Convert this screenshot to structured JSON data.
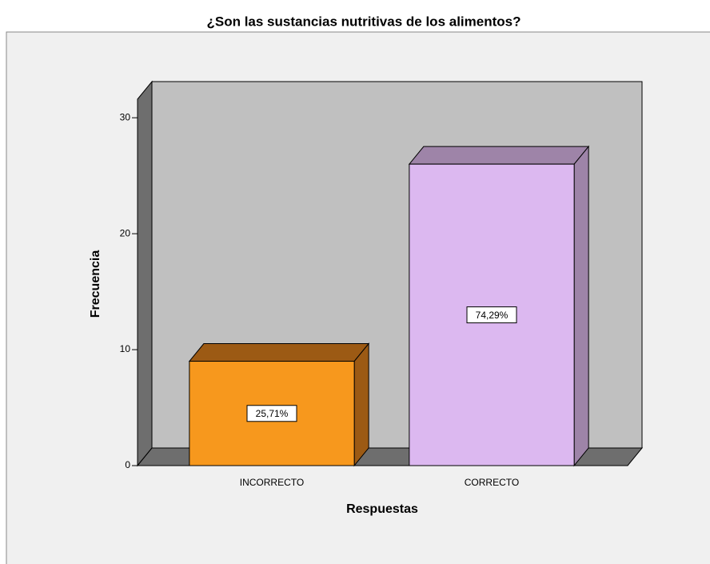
{
  "chart_data": {
    "type": "bar3d",
    "title": "¿Son las sustancias nutritivas de los alimentos?",
    "x_label": "Respuestas",
    "y_label": "Frecuencia",
    "categories": [
      "INCORRECTO",
      "CORRECTO"
    ],
    "series": [
      {
        "name": "Frecuencia",
        "values": [
          9,
          26
        ],
        "colors": [
          "#f7981d",
          "#dcb8f0"
        ],
        "side_colors": [
          "#9c5a14",
          "#9e84a8"
        ]
      }
    ],
    "value_labels": [
      "25,71%",
      "74,29%"
    ],
    "ylim": [
      0,
      31.6
    ],
    "yticks": [
      0,
      10,
      20,
      30
    ]
  }
}
